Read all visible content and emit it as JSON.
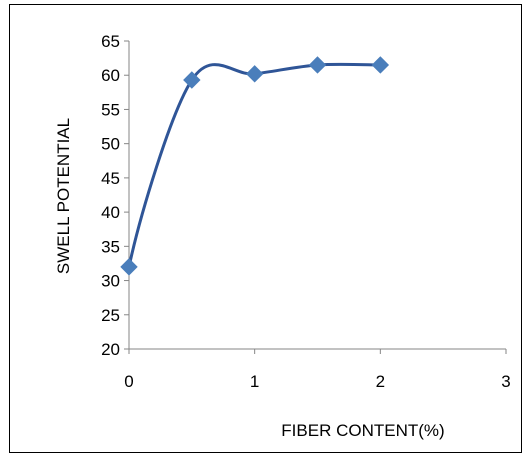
{
  "chart_data": {
    "type": "scatter",
    "title": "",
    "xlabel": "FIBER CONTENT(%)",
    "ylabel": "SWELL POTENTIAL",
    "xlim": [
      0,
      3
    ],
    "ylim": [
      20,
      65
    ],
    "xticks": [
      0,
      1,
      2,
      3
    ],
    "yticks": [
      20,
      25,
      30,
      35,
      40,
      45,
      50,
      55,
      60,
      65
    ],
    "grid": false,
    "legend": "none",
    "series": [
      {
        "x": [
          0,
          0.5,
          1,
          1.5,
          2
        ],
        "y": [
          32,
          59.3,
          60.2,
          61.5,
          61.5
        ],
        "marker": "diamond",
        "marker_color": "#4a7ebb",
        "trendline": "smooth",
        "trendline_color": "#2f5597"
      }
    ]
  }
}
